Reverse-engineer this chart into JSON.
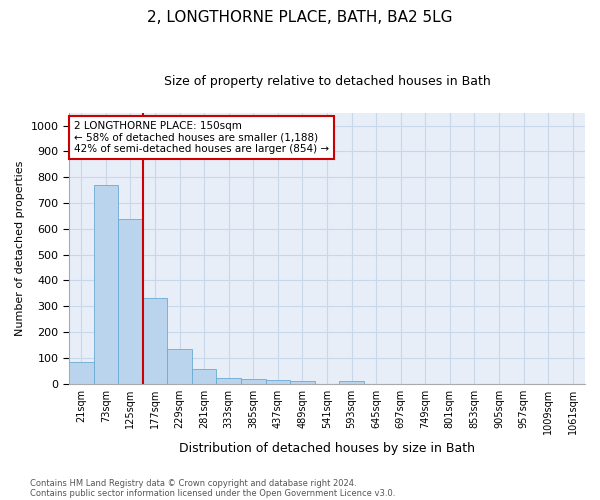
{
  "title1": "2, LONGTHORNE PLACE, BATH, BA2 5LG",
  "title2": "Size of property relative to detached houses in Bath",
  "xlabel": "Distribution of detached houses by size in Bath",
  "ylabel": "Number of detached properties",
  "categories": [
    "21sqm",
    "73sqm",
    "125sqm",
    "177sqm",
    "229sqm",
    "281sqm",
    "333sqm",
    "385sqm",
    "437sqm",
    "489sqm",
    "541sqm",
    "593sqm",
    "645sqm",
    "697sqm",
    "749sqm",
    "801sqm",
    "853sqm",
    "905sqm",
    "957sqm",
    "1009sqm",
    "1061sqm"
  ],
  "bar_values": [
    83,
    770,
    640,
    330,
    133,
    58,
    22,
    18,
    12,
    8,
    0,
    10,
    0,
    0,
    0,
    0,
    0,
    0,
    0,
    0,
    0
  ],
  "bar_color": "#bad4ed",
  "bar_edge_color": "#6aabd2",
  "grid_color": "#c8d8ea",
  "background_color": "#e8eef8",
  "vline_color": "#cc0000",
  "annotation_text": "2 LONGTHORNE PLACE: 150sqm\n← 58% of detached houses are smaller (1,188)\n42% of semi-detached houses are larger (854) →",
  "annotation_box_facecolor": "#ffffff",
  "annotation_box_edgecolor": "#cc0000",
  "footer1": "Contains HM Land Registry data © Crown copyright and database right 2024.",
  "footer2": "Contains public sector information licensed under the Open Government Licence v3.0.",
  "ylim": [
    0,
    1050
  ],
  "yticks": [
    0,
    100,
    200,
    300,
    400,
    500,
    600,
    700,
    800,
    900,
    1000
  ],
  "fig_bg": "#ffffff",
  "title1_fontsize": 11,
  "title2_fontsize": 9,
  "ylabel_fontsize": 8,
  "xlabel_fontsize": 9,
  "tick_fontsize": 8,
  "xtick_fontsize": 7
}
